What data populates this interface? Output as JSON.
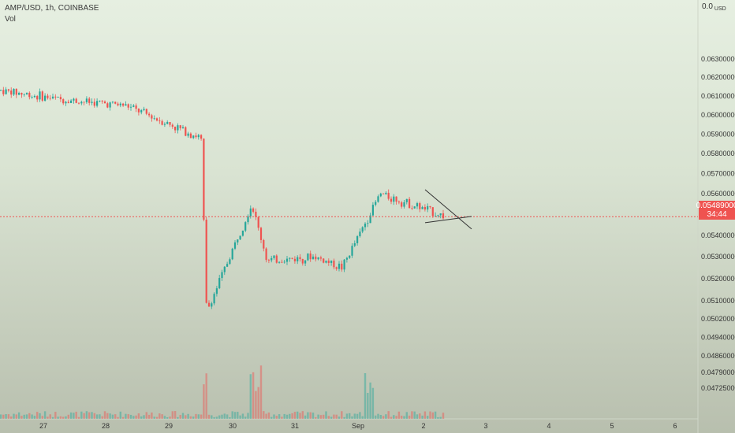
{
  "legend": {
    "symbol": "AMP/USD, 1h, COINBASE",
    "volume_label": "Vol"
  },
  "price_axis": {
    "top_value": "0.0",
    "currency": "USD"
  },
  "current_price": {
    "value": "0.05489000",
    "countdown": "34:44"
  },
  "colors": {
    "up": "#26a69a",
    "down": "#ef5350",
    "background_top": "#e6efe1",
    "background_bottom": "#b8bfae"
  },
  "chart_data": {
    "type": "candlestick",
    "symbol": "AMP/USD",
    "interval": "1h",
    "exchange": "COINBASE",
    "x_tick_labels": [
      "27",
      "28",
      "29",
      "30",
      "31",
      "Sep",
      "2",
      "3",
      "4",
      "5",
      "6"
    ],
    "y_tick_labels": [
      "0.06300000",
      "0.06200000",
      "0.06100000",
      "0.06000000",
      "0.05900000",
      "0.05800000",
      "0.05700000",
      "0.05600000",
      "0.05400000",
      "0.05300000",
      "0.05200000",
      "0.05100000",
      "0.05020000",
      "0.04940000",
      "0.04860000",
      "0.04790000",
      "0.04725000"
    ],
    "y_scale": "log",
    "ylim": [
      0.0467,
      0.0648
    ],
    "last_price": 0.05489,
    "price_path": [
      {
        "x": "27",
        "price": 0.0613
      },
      {
        "x": "28",
        "price": 0.0608
      },
      {
        "x": "29",
        "price": 0.0605
      },
      {
        "x": "30",
        "price": 0.0588
      },
      {
        "x": "30",
        "price": 0.0505
      },
      {
        "x": "31",
        "price": 0.0555
      },
      {
        "x": "31",
        "price": 0.0528
      },
      {
        "x": "Sep",
        "price": 0.053
      },
      {
        "x": "Sep",
        "price": 0.0525
      },
      {
        "x": "2",
        "price": 0.056
      },
      {
        "x": "2",
        "price": 0.0549
      }
    ],
    "trendlines": [
      {
        "from": {
          "x": "2",
          "price": 0.0562
        },
        "to": {
          "x": "3",
          "price": 0.0543
        }
      },
      {
        "from": {
          "x": "2",
          "price": 0.0546
        },
        "to": {
          "x": "3",
          "price": 0.0549
        }
      }
    ],
    "grid": false,
    "legend_position": "top-left"
  }
}
